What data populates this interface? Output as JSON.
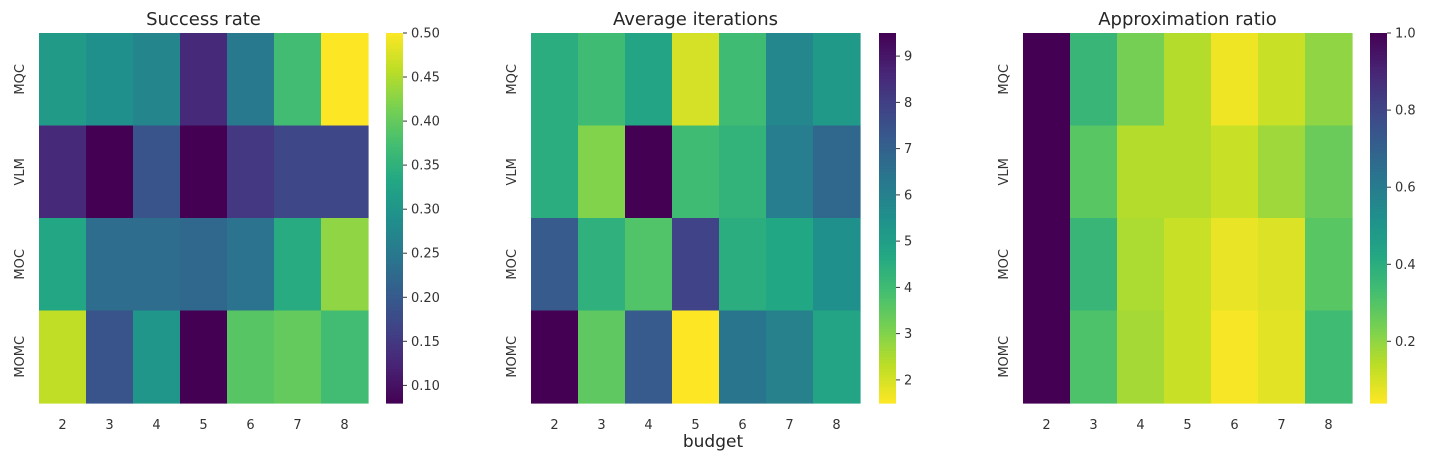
{
  "figure": {
    "xlabel": "budget"
  },
  "chart_data": [
    {
      "type": "heatmap",
      "title": "Success rate",
      "x": [
        "2",
        "3",
        "4",
        "5",
        "6",
        "7",
        "8"
      ],
      "y": [
        "MQC",
        "VLM",
        "MOC",
        "MOMC"
      ],
      "values": [
        [
          0.31,
          0.29,
          0.27,
          0.13,
          0.25,
          0.37,
          0.5
        ],
        [
          0.13,
          0.08,
          0.19,
          0.08,
          0.15,
          0.17,
          0.17
        ],
        [
          0.33,
          0.23,
          0.23,
          0.22,
          0.24,
          0.34,
          0.43
        ],
        [
          0.46,
          0.19,
          0.3,
          0.08,
          0.39,
          0.4,
          0.37
        ]
      ],
      "colormap": "viridis",
      "vmin": 0.08,
      "vmax": 0.5,
      "reversed": false,
      "colorbar_ticks": [
        "0.10",
        "0.15",
        "0.20",
        "0.25",
        "0.30",
        "0.35",
        "0.40",
        "0.45",
        "0.50"
      ],
      "xlabel": "",
      "ylabel": ""
    },
    {
      "type": "heatmap",
      "title": "Average iterations",
      "x": [
        "2",
        "3",
        "4",
        "5",
        "6",
        "7",
        "8"
      ],
      "y": [
        "MQC",
        "VLM",
        "MOC",
        "MOMC"
      ],
      "values": [
        [
          4.5,
          4.0,
          4.8,
          2.0,
          4.0,
          5.8,
          5.2
        ],
        [
          4.5,
          3.0,
          9.5,
          4.0,
          4.3,
          6.1,
          6.8
        ],
        [
          7.2,
          4.4,
          3.7,
          7.9,
          4.5,
          4.7,
          5.5
        ],
        [
          9.5,
          3.5,
          7.2,
          1.5,
          6.4,
          6.0,
          4.8
        ]
      ],
      "colormap": "viridis",
      "vmin": 1.5,
      "vmax": 9.5,
      "reversed": true,
      "colorbar_ticks": [
        "2",
        "3",
        "4",
        "5",
        "6",
        "7",
        "8",
        "9"
      ],
      "xlabel": "budget",
      "ylabel": ""
    },
    {
      "type": "heatmap",
      "title": "Approximation ratio",
      "x": [
        "2",
        "3",
        "4",
        "5",
        "6",
        "7",
        "8"
      ],
      "y": [
        "MQC",
        "VLM",
        "MOC",
        "MOMC"
      ],
      "values": [
        [
          1.0,
          0.36,
          0.24,
          0.15,
          0.06,
          0.12,
          0.2
        ],
        [
          1.0,
          0.29,
          0.15,
          0.15,
          0.12,
          0.18,
          0.26
        ],
        [
          1.0,
          0.36,
          0.16,
          0.12,
          0.07,
          0.09,
          0.29
        ],
        [
          1.0,
          0.31,
          0.17,
          0.12,
          0.05,
          0.08,
          0.34
        ]
      ],
      "colormap": "viridis",
      "vmin": 0.04,
      "vmax": 1.0,
      "reversed": true,
      "colorbar_ticks": [
        "0.2",
        "0.4",
        "0.6",
        "0.8",
        "1.0"
      ],
      "xlabel": "",
      "ylabel": ""
    }
  ]
}
